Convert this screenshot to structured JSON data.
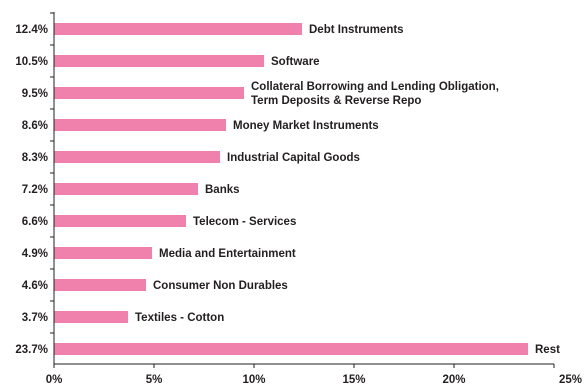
{
  "chart_data": {
    "type": "bar",
    "orientation": "horizontal",
    "bar_color": "#f081ad",
    "axis_color": "#231f20",
    "categories": [
      "Debt Instruments",
      "Software",
      "Collateral Borrowing and Lending Obligation,\nTerm Deposits & Reverse Repo",
      "Money Market Instruments",
      "Industrial Capital Goods",
      "Banks",
      "Telecom - Services",
      "Media and Entertainment",
      "Consumer Non Durables",
      "Textiles - Cotton",
      "Rest"
    ],
    "values": [
      12.4,
      10.5,
      9.5,
      8.6,
      8.3,
      7.2,
      6.6,
      4.9,
      4.6,
      3.7,
      23.7
    ],
    "value_labels": [
      "12.4%",
      "10.5%",
      "9.5%",
      "8.6%",
      "8.3%",
      "7.2%",
      "6.6%",
      "4.9%",
      "4.6%",
      "3.7%",
      "23.7%"
    ],
    "xlim": [
      0,
      25
    ],
    "xticks": [
      0,
      5,
      10,
      15,
      20,
      25
    ],
    "xtick_labels": [
      "0%",
      "5%",
      "10%",
      "15%",
      "20%",
      "25%"
    ],
    "grid": false,
    "legend": "none"
  }
}
